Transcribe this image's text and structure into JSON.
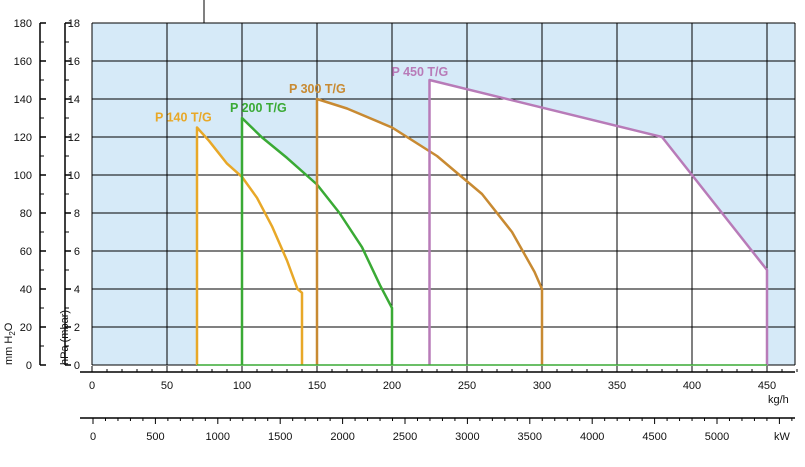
{
  "chart_data": {
    "type": "line",
    "x_axis": {
      "label": "kg/h",
      "min": 0,
      "max": 470,
      "ticks": [
        0,
        50,
        100,
        150,
        200,
        250,
        300,
        350,
        400,
        450
      ]
    },
    "x2_axis": {
      "label": "kW",
      "ticks": [
        0,
        500,
        1000,
        1500,
        2000,
        2500,
        3000,
        3500,
        4000,
        4500,
        5000
      ],
      "kg_per_kw": 0.0833
    },
    "y_axis": {
      "label": "hPa (mbar)",
      "min": 0,
      "max": 18,
      "ticks": [
        0,
        2,
        4,
        6,
        8,
        10,
        12,
        14,
        16,
        18
      ]
    },
    "y2_axis": {
      "label": "mm H2O",
      "ticks": [
        0,
        20,
        40,
        60,
        80,
        100,
        120,
        140,
        160,
        180
      ]
    },
    "grid": true,
    "colors": {
      "plot_bg": "#d6eaf8",
      "working_area": "#ffffff",
      "grid": "#000000"
    },
    "series": [
      {
        "name": "P 140 T/G",
        "color": "#e8a828",
        "points": [
          [
            70,
            0
          ],
          [
            70,
            12.5
          ],
          [
            78,
            11.8
          ],
          [
            90,
            10.6
          ],
          [
            100,
            9.9
          ],
          [
            110,
            8.8
          ],
          [
            120,
            7.3
          ],
          [
            130,
            5.5
          ],
          [
            137,
            4
          ],
          [
            140,
            3.8
          ],
          [
            140,
            0
          ]
        ]
      },
      {
        "name": "P 200 T/G",
        "color": "#3aaa35",
        "points": [
          [
            100,
            0
          ],
          [
            100,
            13
          ],
          [
            113,
            12
          ],
          [
            130,
            10.9
          ],
          [
            150,
            9.5
          ],
          [
            165,
            8
          ],
          [
            180,
            6.2
          ],
          [
            192,
            4.2
          ],
          [
            200,
            3
          ],
          [
            200,
            0
          ]
        ]
      },
      {
        "name": "P 300 T/G",
        "color": "#c88a32",
        "points": [
          [
            150,
            0
          ],
          [
            150,
            14
          ],
          [
            170,
            13.5
          ],
          [
            200,
            12.5
          ],
          [
            230,
            11
          ],
          [
            260,
            9
          ],
          [
            280,
            7
          ],
          [
            295,
            4.9
          ],
          [
            300,
            4
          ],
          [
            300,
            0
          ]
        ]
      },
      {
        "name": "P 450 T/G",
        "color": "#b87bb8",
        "points": [
          [
            225,
            0
          ],
          [
            225,
            15
          ],
          [
            380,
            12
          ],
          [
            400,
            10
          ],
          [
            450,
            5
          ],
          [
            450,
            0
          ]
        ]
      }
    ]
  }
}
